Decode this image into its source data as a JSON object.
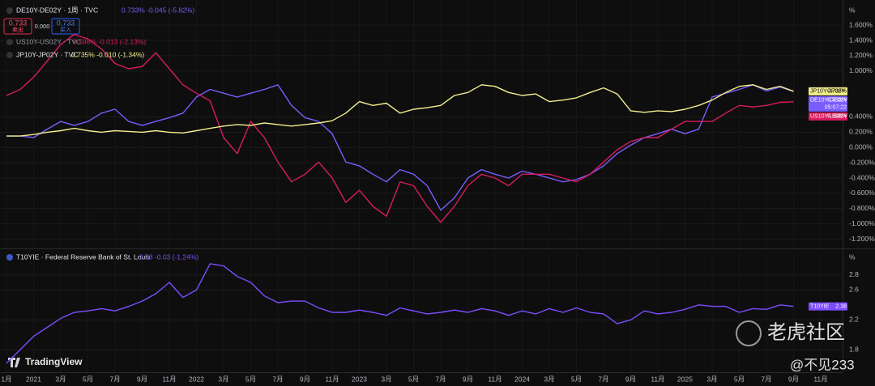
{
  "chart_data": [
    {
      "type": "line",
      "unit": "%",
      "categories": [
        "1月",
        null,
        "2021",
        null,
        "3月",
        null,
        "5月",
        null,
        "7月",
        null,
        "9月",
        null,
        "11月",
        null,
        "2022",
        null,
        "3月",
        null,
        "5月",
        null,
        "7月",
        null,
        "9月",
        null,
        "11月",
        null,
        "2023",
        null,
        "3月",
        null,
        "5月",
        null,
        "7月",
        null,
        "9月",
        null,
        "11月",
        null,
        "2024",
        null,
        "3月",
        null,
        "5月",
        null,
        "7月",
        null,
        "9月",
        null,
        "11月",
        null,
        "2025",
        null,
        "3月",
        null,
        "5月",
        null,
        "7月",
        null,
        "9月",
        null,
        "11月"
      ],
      "ylim": [
        -1.3,
        1.93
      ],
      "yticks": [
        {
          "value": 1.6,
          "label": "1.600%"
        },
        {
          "value": 1.4,
          "label": "1.400%"
        },
        {
          "value": 1.2,
          "label": "1.200%"
        },
        {
          "value": 1.0,
          "label": "1.000%"
        },
        {
          "value": 0.4,
          "label": "0.400%"
        },
        {
          "value": 0.2,
          "label": "0.200%"
        },
        {
          "value": 0,
          "label": "0.000%"
        },
        {
          "value": -0.2,
          "label": "-0.200%"
        },
        {
          "value": -0.4,
          "label": "-0.400%"
        },
        {
          "value": -0.6,
          "label": "-0.600%"
        },
        {
          "value": -0.8,
          "label": "-0.800%"
        },
        {
          "value": -1.0,
          "label": "-1.000%"
        },
        {
          "value": -1.2,
          "label": "-1.200%"
        }
      ],
      "grid": true,
      "series": [
        {
          "name": "DE10Y-DE02Y",
          "legend": "DE10Y-DE02Y · 1周 · TVC",
          "quote": "0.733% -0.045 (-5.82%)",
          "last_label": "0.733%",
          "countdown": "05:07:22",
          "color": "#7b5cff",
          "values": [
            0.15,
            0.15,
            0.13,
            0.24,
            0.34,
            0.29,
            0.34,
            0.45,
            0.5,
            0.34,
            0.29,
            0.34,
            0.39,
            0.45,
            0.66,
            0.76,
            0.71,
            0.66,
            0.71,
            0.76,
            0.82,
            0.55,
            0.39,
            0.34,
            0.18,
            -0.19,
            -0.24,
            -0.35,
            -0.45,
            -0.29,
            -0.35,
            -0.5,
            -0.82,
            -0.66,
            -0.4,
            -0.29,
            -0.35,
            -0.4,
            -0.31,
            -0.35,
            -0.4,
            -0.45,
            -0.42,
            -0.35,
            -0.24,
            -0.08,
            0.03,
            0.13,
            0.18,
            0.24,
            0.18,
            0.24,
            0.66,
            0.71,
            0.76,
            0.82,
            0.74,
            0.79,
            0.733,
            null,
            null
          ]
        },
        {
          "name": "US10Y-US02Y",
          "legend": "US10Y-US02Y · TVC",
          "quote": "0.598% -0.013 (-2.13%)",
          "last_label": "0.598%",
          "color": "#d81b60",
          "values": [
            0.68,
            0.76,
            0.92,
            1.13,
            1.35,
            1.48,
            1.42,
            1.29,
            1.1,
            1.03,
            1.06,
            1.24,
            1.03,
            0.82,
            0.71,
            0.61,
            0.13,
            -0.08,
            0.34,
            0.13,
            -0.19,
            -0.45,
            -0.35,
            -0.19,
            -0.4,
            -0.72,
            -0.56,
            -0.77,
            -0.9,
            -0.45,
            -0.5,
            -0.77,
            -0.98,
            -0.77,
            -0.5,
            -0.35,
            -0.4,
            -0.5,
            -0.35,
            -0.35,
            -0.35,
            -0.4,
            -0.45,
            -0.35,
            -0.19,
            -0.03,
            0.08,
            0.13,
            0.13,
            0.24,
            0.34,
            0.34,
            0.34,
            0.45,
            0.55,
            0.53,
            0.55,
            0.59,
            0.598,
            null,
            null
          ]
        },
        {
          "name": "JP10Y-JP02Y",
          "legend": "JP10Y-JP02Y · TVC",
          "quote": "0.735% -0.010 (-1.34%)",
          "last_label": "0.735%",
          "color": "#f3ee8c",
          "values": [
            0.15,
            0.15,
            0.17,
            0.2,
            0.22,
            0.25,
            0.22,
            0.2,
            0.22,
            0.21,
            0.2,
            0.22,
            0.2,
            0.19,
            0.22,
            0.25,
            0.28,
            0.3,
            0.29,
            0.32,
            0.3,
            0.28,
            0.3,
            0.32,
            0.35,
            0.45,
            0.6,
            0.55,
            0.58,
            0.45,
            0.5,
            0.52,
            0.55,
            0.68,
            0.72,
            0.82,
            0.8,
            0.72,
            0.68,
            0.7,
            0.6,
            0.62,
            0.65,
            0.72,
            0.78,
            0.7,
            0.48,
            0.46,
            0.48,
            0.47,
            0.5,
            0.55,
            0.62,
            0.72,
            0.8,
            0.82,
            0.76,
            0.8,
            0.735,
            null,
            null
          ]
        }
      ]
    },
    {
      "type": "line",
      "unit": "%",
      "ylim": [
        1.5,
        3.1
      ],
      "yticks": [
        2.8,
        2.6,
        2.2,
        1.8
      ],
      "grid": true,
      "series": [
        {
          "name": "T10YIE",
          "legend": "T10YIE · Federal Reserve Bank of St. Louis",
          "quote": "2.38 -0.03 (-1.24%)",
          "last_label": "2.38",
          "color": "#7c4dff",
          "values": [
            1.62,
            1.8,
            1.98,
            2.1,
            2.22,
            2.3,
            2.32,
            2.35,
            2.32,
            2.38,
            2.45,
            2.55,
            2.7,
            2.5,
            2.6,
            2.95,
            2.92,
            2.78,
            2.7,
            2.52,
            2.43,
            2.45,
            2.45,
            2.36,
            2.3,
            2.3,
            2.33,
            2.3,
            2.26,
            2.36,
            2.32,
            2.28,
            2.3,
            2.33,
            2.3,
            2.35,
            2.32,
            2.26,
            2.32,
            2.28,
            2.35,
            2.3,
            2.36,
            2.3,
            2.28,
            2.15,
            2.2,
            2.32,
            2.28,
            2.3,
            2.34,
            2.4,
            2.38,
            2.38,
            2.3,
            2.35,
            2.34,
            2.4,
            2.38,
            null,
            null
          ]
        }
      ]
    }
  ],
  "ui": {
    "sell_price": "0.733",
    "sell": "卖出",
    "spread": "0.000",
    "buy_price": "0.733",
    "buy": "买入",
    "brand": "TradingView",
    "watermark": "老虎社区",
    "author": "@不见233"
  }
}
